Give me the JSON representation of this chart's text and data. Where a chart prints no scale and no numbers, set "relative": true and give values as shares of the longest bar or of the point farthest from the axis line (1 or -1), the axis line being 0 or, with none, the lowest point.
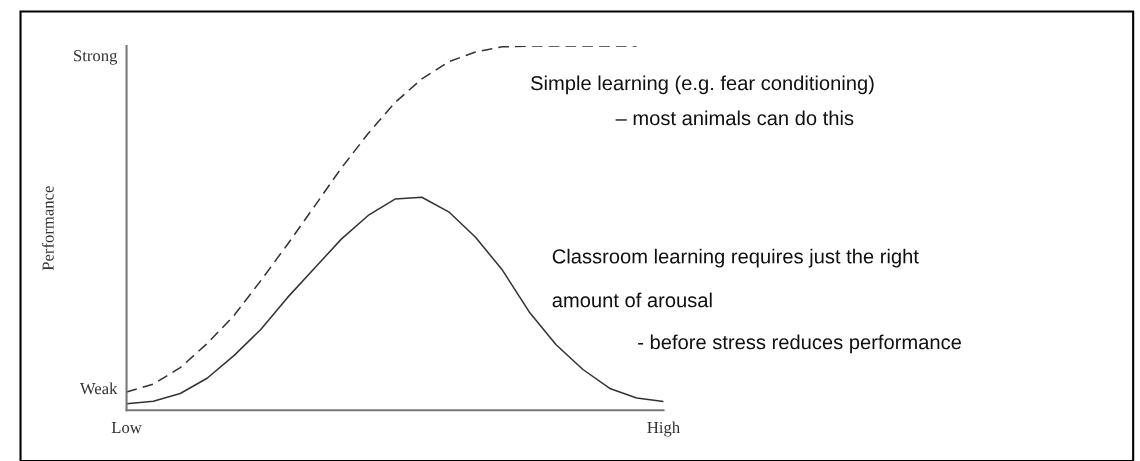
{
  "chart_data": {
    "type": "line",
    "ylabel": "Performance",
    "relative": true,
    "grid": false,
    "legend": false,
    "categories": [
      "Low",
      null,
      null,
      null,
      null,
      null,
      null,
      null,
      null,
      null,
      null,
      null,
      null,
      null,
      null,
      null,
      null,
      null,
      null,
      null,
      "High"
    ],
    "series": [
      {
        "color": "#333333",
        "line_style": "dashed",
        "values": [
          0.05,
          0.072,
          0.117,
          0.183,
          0.26,
          0.356,
          0.456,
          0.56,
          0.665,
          0.76,
          0.845,
          0.91,
          0.957,
          0.984,
          0.998,
          1.0,
          1.0,
          1.0,
          1.0,
          1.0,
          null
        ]
      },
      {
        "color": "#333333",
        "line_style": "solid",
        "values": [
          0.018,
          0.025,
          0.046,
          0.088,
          0.15,
          0.222,
          0.31,
          0.39,
          0.47,
          0.535,
          0.58,
          0.585,
          0.545,
          0.475,
          0.385,
          0.27,
          0.18,
          0.112,
          0.06,
          0.034,
          0.024
        ]
      }
    ],
    "annotations": [
      "Strong",
      "Simple learning (e.g. fear conditioning)",
      "– most animals can do this",
      "Classroom learning requires just the right",
      "amount of arousal",
      "- before stress reduces performance",
      "Weak"
    ]
  }
}
